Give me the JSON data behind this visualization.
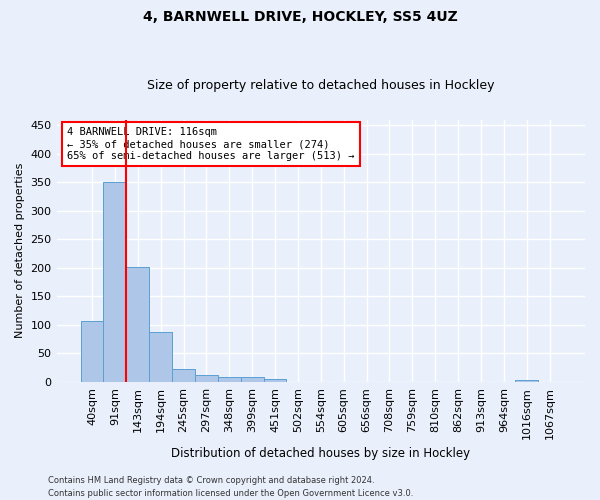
{
  "title1": "4, BARNWELL DRIVE, HOCKLEY, SS5 4UZ",
  "title2": "Size of property relative to detached houses in Hockley",
  "xlabel": "Distribution of detached houses by size in Hockley",
  "ylabel": "Number of detached properties",
  "bar_labels": [
    "40sqm",
    "91sqm",
    "143sqm",
    "194sqm",
    "245sqm",
    "297sqm",
    "348sqm",
    "399sqm",
    "451sqm",
    "502sqm",
    "554sqm",
    "605sqm",
    "656sqm",
    "708sqm",
    "759sqm",
    "810sqm",
    "862sqm",
    "913sqm",
    "964sqm",
    "1016sqm",
    "1067sqm"
  ],
  "bar_values": [
    107,
    350,
    202,
    88,
    22,
    13,
    8,
    8,
    5,
    0,
    0,
    0,
    0,
    0,
    0,
    0,
    0,
    0,
    0,
    4,
    0
  ],
  "bar_color": "#aec6e8",
  "bar_edgecolor": "#5a9fd4",
  "vline_x": 1.5,
  "vline_color": "red",
  "annotation_line1": "4 BARNWELL DRIVE: 116sqm",
  "annotation_line2": "← 35% of detached houses are smaller (274)",
  "annotation_line3": "65% of semi-detached houses are larger (513) →",
  "annotation_box_color": "white",
  "annotation_box_edgecolor": "red",
  "ylim": [
    0,
    460
  ],
  "yticks": [
    0,
    50,
    100,
    150,
    200,
    250,
    300,
    350,
    400,
    450
  ],
  "footer1": "Contains HM Land Registry data © Crown copyright and database right 2024.",
  "footer2": "Contains public sector information licensed under the Open Government Licence v3.0.",
  "background_color": "#eaf0fb",
  "grid_color": "white"
}
